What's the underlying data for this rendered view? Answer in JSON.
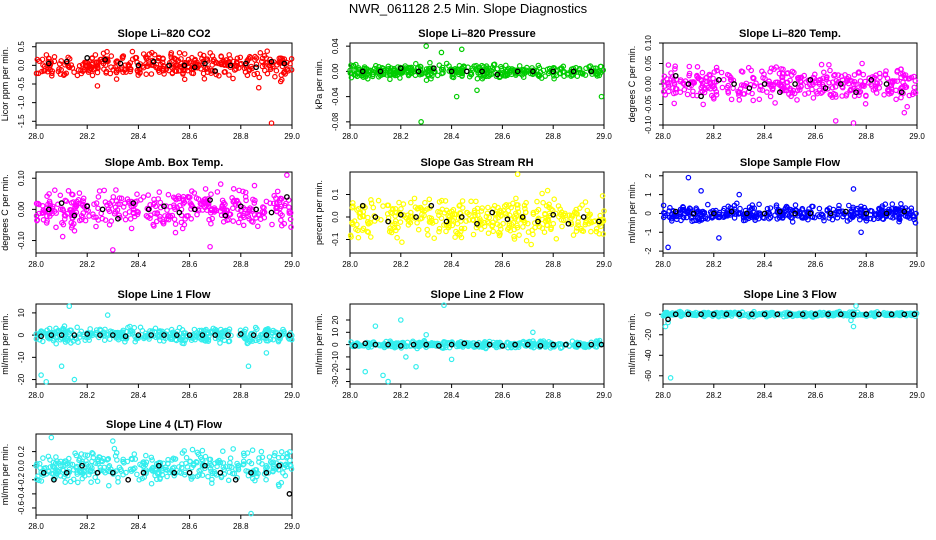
{
  "title": "NWR_061128  2.5 Min. Slope Diagnostics",
  "chart_data": [
    {
      "type": "scatter",
      "title": "Slope Li–820 CO2",
      "ylabel": "Licor ppm per min.",
      "xlim": [
        28.0,
        29.0
      ],
      "ylim": [
        -1.6,
        0.6
      ],
      "yticks": [
        -1.5,
        -1.0,
        -0.5,
        0.0,
        0.5
      ],
      "ytick_labels": [
        "-1.5",
        "-1.0",
        "-0.5",
        "0.0",
        "0.5"
      ],
      "xticks": [
        28.0,
        28.2,
        28.4,
        28.6,
        28.8,
        29.0
      ],
      "xtick_labels": [
        "28.0",
        "28.2",
        "28.4",
        "28.6",
        "28.8",
        "29.0"
      ],
      "color": "#ff0000",
      "noise": [
        -0.45,
        0.45
      ],
      "outliers": [
        [
          28.92,
          -1.55
        ],
        [
          28.87,
          -0.6
        ],
        [
          28.24,
          -0.55
        ]
      ],
      "black": [
        [
          28.05,
          0.05
        ],
        [
          28.12,
          0.1
        ],
        [
          28.2,
          0.2
        ],
        [
          28.27,
          0.15
        ],
        [
          28.33,
          0.05
        ],
        [
          28.4,
          0.0
        ],
        [
          28.46,
          0.1
        ],
        [
          28.52,
          0.0
        ],
        [
          28.58,
          0.0
        ],
        [
          28.62,
          -0.05
        ],
        [
          28.66,
          0.05
        ],
        [
          28.7,
          -0.15
        ],
        [
          28.76,
          0.0
        ],
        [
          28.82,
          0.05
        ],
        [
          28.86,
          -0.05
        ],
        [
          28.92,
          0.1
        ],
        [
          28.97,
          0.05
        ]
      ]
    },
    {
      "type": "scatter",
      "title": "Slope Li–820 Pressure",
      "ylabel": "kPa per min.",
      "xlim": [
        28.0,
        29.0
      ],
      "ylim": [
        -0.085,
        0.045
      ],
      "yticks": [
        -0.08,
        -0.04,
        0.0,
        0.04
      ],
      "ytick_labels": [
        "-0.08",
        "-0.04",
        "0.00",
        "0.04"
      ],
      "xticks": [
        28.0,
        28.2,
        28.4,
        28.6,
        28.8,
        29.0
      ],
      "xtick_labels": [
        "28.0",
        "28.2",
        "28.4",
        "28.6",
        "28.8",
        "29.0"
      ],
      "color": "#00cc00",
      "noise": [
        -0.015,
        0.015
      ],
      "outliers": [
        [
          28.28,
          -0.08
        ],
        [
          28.3,
          0.04
        ],
        [
          28.36,
          0.03
        ],
        [
          28.42,
          -0.04
        ],
        [
          28.44,
          0.035
        ],
        [
          28.99,
          -0.04
        ],
        [
          28.5,
          -0.03
        ]
      ],
      "black": [
        [
          28.05,
          0.0
        ],
        [
          28.12,
          0.0
        ],
        [
          28.2,
          0.005
        ],
        [
          28.27,
          0.0
        ],
        [
          28.33,
          0.005
        ],
        [
          28.4,
          0.0
        ],
        [
          28.46,
          0.0
        ],
        [
          28.52,
          0.0
        ],
        [
          28.58,
          -0.005
        ],
        [
          28.66,
          0.0
        ],
        [
          28.72,
          0.0
        ],
        [
          28.8,
          0.0
        ],
        [
          28.88,
          0.0
        ],
        [
          28.95,
          0.0
        ]
      ]
    },
    {
      "type": "scatter",
      "title": "Slope Li–820 Temp.",
      "ylabel": "degrees C per min.",
      "xlim": [
        28.0,
        29.0
      ],
      "ylim": [
        -0.1,
        0.1
      ],
      "yticks": [
        -0.1,
        -0.05,
        0.0,
        0.05,
        0.1
      ],
      "ytick_labels": [
        "-0.10",
        "-0.05",
        "0.00",
        "0.05",
        "0.10"
      ],
      "xticks": [
        28.0,
        28.2,
        28.4,
        28.6,
        28.8,
        29.0
      ],
      "xtick_labels": [
        "28.0",
        "28.2",
        "28.4",
        "28.6",
        "28.8",
        "29.0"
      ],
      "color": "#ff00ff",
      "noise": [
        -0.06,
        0.06
      ],
      "outliers": [
        [
          28.68,
          -0.09
        ],
        [
          28.75,
          -0.095
        ],
        [
          28.95,
          -0.07
        ]
      ],
      "black": [
        [
          28.05,
          0.02
        ],
        [
          28.1,
          0.0
        ],
        [
          28.15,
          -0.03
        ],
        [
          28.22,
          0.01
        ],
        [
          28.28,
          0.0
        ],
        [
          28.34,
          -0.01
        ],
        [
          28.4,
          0.0
        ],
        [
          28.46,
          -0.02
        ],
        [
          28.52,
          0.0
        ],
        [
          28.58,
          0.01
        ],
        [
          28.64,
          -0.01
        ],
        [
          28.7,
          0.0
        ],
        [
          28.76,
          -0.02
        ],
        [
          28.82,
          0.01
        ],
        [
          28.88,
          0.0
        ],
        [
          28.94,
          -0.02
        ]
      ]
    },
    {
      "type": "scatter",
      "title": "Slope Amb. Box Temp.",
      "ylabel": "degrees C per min.",
      "xlim": [
        28.0,
        29.0
      ],
      "ylim": [
        -0.14,
        0.12
      ],
      "yticks": [
        -0.1,
        0.0,
        0.1
      ],
      "ytick_labels": [
        "-0.10",
        "0.00",
        "0.10"
      ],
      "xticks": [
        28.0,
        28.2,
        28.4,
        28.6,
        28.8,
        29.0
      ],
      "xtick_labels": [
        "28.0",
        "28.2",
        "28.4",
        "28.6",
        "28.8",
        "29.0"
      ],
      "color": "#ff00ff",
      "noise": [
        -0.09,
        0.09
      ],
      "outliers": [
        [
          28.3,
          -0.13
        ],
        [
          28.68,
          -0.12
        ],
        [
          28.98,
          0.11
        ]
      ],
      "black": [
        [
          28.05,
          0.0
        ],
        [
          28.1,
          0.02
        ],
        [
          28.15,
          -0.02
        ],
        [
          28.2,
          0.01
        ],
        [
          28.26,
          0.0
        ],
        [
          28.32,
          -0.03
        ],
        [
          28.38,
          0.02
        ],
        [
          28.44,
          0.0
        ],
        [
          28.5,
          0.01
        ],
        [
          28.56,
          -0.01
        ],
        [
          28.62,
          0.0
        ],
        [
          28.68,
          0.03
        ],
        [
          28.74,
          -0.02
        ],
        [
          28.8,
          0.01
        ],
        [
          28.86,
          0.0
        ],
        [
          28.92,
          -0.01
        ],
        [
          28.98,
          0.04
        ]
      ]
    },
    {
      "type": "scatter",
      "title": "Slope Gas Stream RH",
      "ylabel": "percent per min.",
      "xlim": [
        28.0,
        29.0
      ],
      "ylim": [
        -0.16,
        0.2
      ],
      "yticks": [
        -0.1,
        0.0,
        0.1
      ],
      "ytick_labels": [
        "-0.1",
        "0.0",
        "0.1"
      ],
      "xticks": [
        28.0,
        28.2,
        28.4,
        28.6,
        28.8,
        29.0
      ],
      "xtick_labels": [
        "28.0",
        "28.2",
        "28.4",
        "28.6",
        "28.8",
        "29.0"
      ],
      "color": "#ffff00",
      "noise": [
        -0.13,
        0.13
      ],
      "outliers": [
        [
          28.66,
          0.19
        ]
      ],
      "black": [
        [
          28.05,
          0.05
        ],
        [
          28.1,
          0.0
        ],
        [
          28.15,
          -0.02
        ],
        [
          28.2,
          0.01
        ],
        [
          28.26,
          0.0
        ],
        [
          28.32,
          0.05
        ],
        [
          28.38,
          -0.02
        ],
        [
          28.44,
          0.0
        ],
        [
          28.5,
          -0.03
        ],
        [
          28.56,
          0.02
        ],
        [
          28.62,
          -0.01
        ],
        [
          28.68,
          0.0
        ],
        [
          28.74,
          -0.02
        ],
        [
          28.8,
          0.01
        ],
        [
          28.86,
          -0.03
        ],
        [
          28.92,
          0.0
        ],
        [
          28.98,
          -0.02
        ]
      ]
    },
    {
      "type": "scatter",
      "title": "Slope Sample Flow",
      "ylabel": "ml/min per min.",
      "xlim": [
        28.0,
        29.0
      ],
      "ylim": [
        -2.1,
        2.2
      ],
      "yticks": [
        -2,
        -1,
        0,
        1,
        2
      ],
      "ytick_labels": [
        "-2",
        "-1",
        "0",
        "1",
        "2"
      ],
      "xticks": [
        28.0,
        28.2,
        28.4,
        28.6,
        28.8,
        29.0
      ],
      "xtick_labels": [
        "28.0",
        "28.2",
        "28.4",
        "28.6",
        "28.8",
        "29.0"
      ],
      "color": "#0000ff",
      "noise": [
        -0.6,
        0.6
      ],
      "outliers": [
        [
          28.02,
          -1.8
        ],
        [
          28.1,
          1.9
        ],
        [
          28.15,
          1.2
        ],
        [
          28.22,
          -1.3
        ],
        [
          28.3,
          1.0
        ],
        [
          28.75,
          1.3
        ],
        [
          28.78,
          -1.0
        ]
      ],
      "black": [
        [
          28.05,
          0.1
        ],
        [
          28.12,
          0.0
        ],
        [
          28.2,
          0.0
        ],
        [
          28.27,
          0.1
        ],
        [
          28.33,
          0.0
        ],
        [
          28.4,
          0.0
        ],
        [
          28.46,
          0.1
        ],
        [
          28.52,
          0.0
        ],
        [
          28.58,
          0.0
        ],
        [
          28.66,
          0.0
        ],
        [
          28.72,
          0.1
        ],
        [
          28.8,
          0.0
        ],
        [
          28.88,
          0.0
        ],
        [
          28.95,
          0.1
        ]
      ]
    },
    {
      "type": "scatter",
      "title": "Slope Line 1 Flow",
      "ylabel": "ml/min per min.",
      "xlim": [
        28.0,
        29.0
      ],
      "ylim": [
        -22,
        14
      ],
      "yticks": [
        -20,
        -10,
        0,
        10
      ],
      "ytick_labels": [
        "-20",
        "-10",
        "0",
        "10"
      ],
      "xticks": [
        28.0,
        28.2,
        28.4,
        28.6,
        28.8,
        29.0
      ],
      "xtick_labels": [
        "28.0",
        "28.2",
        "28.4",
        "28.6",
        "28.8",
        "29.0"
      ],
      "color": "#33eeee",
      "noise": [
        -5,
        5
      ],
      "outliers": [
        [
          28.02,
          -18
        ],
        [
          28.04,
          -21
        ],
        [
          28.1,
          -14
        ],
        [
          28.13,
          13
        ],
        [
          28.15,
          -20
        ],
        [
          28.28,
          9
        ],
        [
          28.83,
          -14
        ],
        [
          28.9,
          -8
        ]
      ],
      "black": [
        [
          28.02,
          -0.5
        ],
        [
          28.06,
          0.0
        ],
        [
          28.1,
          0.0
        ],
        [
          28.15,
          0.0
        ],
        [
          28.2,
          0.5
        ],
        [
          28.25,
          0.0
        ],
        [
          28.3,
          0.0
        ],
        [
          28.35,
          -0.5
        ],
        [
          28.4,
          0.0
        ],
        [
          28.45,
          0.0
        ],
        [
          28.5,
          0.0
        ],
        [
          28.55,
          0.0
        ],
        [
          28.6,
          0.0
        ],
        [
          28.65,
          0.0
        ],
        [
          28.7,
          0.0
        ],
        [
          28.75,
          0.0
        ],
        [
          28.8,
          0.5
        ],
        [
          28.85,
          0.0
        ],
        [
          28.9,
          0.0
        ],
        [
          28.95,
          0.0
        ],
        [
          28.99,
          0.0
        ]
      ]
    },
    {
      "type": "scatter",
      "title": "Slope Line 2 Flow",
      "ylabel": "ml/min per min.",
      "xlim": [
        28.0,
        29.0
      ],
      "ylim": [
        -32,
        33
      ],
      "yticks": [
        -30,
        -20,
        -10,
        0,
        10,
        20
      ],
      "ytick_labels": [
        "-30",
        "-20",
        "-10",
        "0",
        "10",
        "20"
      ],
      "xticks": [
        28.0,
        28.2,
        28.4,
        28.6,
        28.8,
        29.0
      ],
      "xtick_labels": [
        "28.0",
        "28.2",
        "28.4",
        "28.6",
        "28.8",
        "29.0"
      ],
      "color": "#33eeee",
      "noise": [
        -4,
        4
      ],
      "outliers": [
        [
          28.06,
          -22
        ],
        [
          28.1,
          15
        ],
        [
          28.13,
          -25
        ],
        [
          28.15,
          -30
        ],
        [
          28.2,
          20
        ],
        [
          28.22,
          -10
        ],
        [
          28.26,
          -18
        ],
        [
          28.3,
          8
        ],
        [
          28.37,
          32
        ],
        [
          28.4,
          -12
        ],
        [
          28.72,
          10
        ]
      ],
      "black": [
        [
          28.02,
          -1
        ],
        [
          28.06,
          1
        ],
        [
          28.1,
          0
        ],
        [
          28.15,
          0
        ],
        [
          28.2,
          -1
        ],
        [
          28.25,
          0
        ],
        [
          28.3,
          0
        ],
        [
          28.35,
          -1
        ],
        [
          28.4,
          0
        ],
        [
          28.45,
          1
        ],
        [
          28.5,
          0
        ],
        [
          28.55,
          0
        ],
        [
          28.6,
          -1
        ],
        [
          28.65,
          0
        ],
        [
          28.7,
          0
        ],
        [
          28.75,
          -1
        ],
        [
          28.8,
          0
        ],
        [
          28.85,
          0
        ],
        [
          28.9,
          0
        ],
        [
          28.95,
          0
        ],
        [
          28.99,
          0
        ]
      ]
    },
    {
      "type": "scatter",
      "title": "Slope Line 3 Flow",
      "ylabel": "ml/min per min.",
      "xlim": [
        28.0,
        29.0
      ],
      "ylim": [
        -68,
        10
      ],
      "yticks": [
        -60,
        -40,
        -20,
        0
      ],
      "ytick_labels": [
        "-60",
        "-40",
        "-20",
        "0"
      ],
      "xticks": [
        28.0,
        28.2,
        28.4,
        28.6,
        28.8,
        29.0
      ],
      "xtick_labels": [
        "28.0",
        "28.2",
        "28.4",
        "28.6",
        "28.8",
        "29.0"
      ],
      "color": "#33eeee",
      "noise": [
        -3,
        3
      ],
      "outliers": [
        [
          28.01,
          -12
        ],
        [
          28.02,
          -8
        ],
        [
          28.03,
          -62
        ],
        [
          28.75,
          -12
        ],
        [
          28.76,
          8
        ],
        [
          28.74,
          -6
        ]
      ],
      "black": [
        [
          28.02,
          -5
        ],
        [
          28.05,
          0
        ],
        [
          28.1,
          0
        ],
        [
          28.15,
          0
        ],
        [
          28.2,
          0
        ],
        [
          28.25,
          0
        ],
        [
          28.3,
          0
        ],
        [
          28.35,
          0
        ],
        [
          28.4,
          0
        ],
        [
          28.45,
          0
        ],
        [
          28.5,
          0
        ],
        [
          28.55,
          0
        ],
        [
          28.6,
          0
        ],
        [
          28.65,
          0
        ],
        [
          28.7,
          0
        ],
        [
          28.75,
          0
        ],
        [
          28.8,
          0
        ],
        [
          28.85,
          0
        ],
        [
          28.9,
          0
        ],
        [
          28.95,
          0
        ],
        [
          28.99,
          0
        ]
      ]
    },
    {
      "type": "scatter",
      "title": "Slope Line 4 (LT) Flow",
      "ylabel": "ml/min per min.",
      "xlim": [
        28.0,
        29.0
      ],
      "ylim": [
        -0.7,
        0.45
      ],
      "yticks": [
        -0.6,
        -0.4,
        -0.2,
        0.0,
        0.2
      ],
      "ytick_labels": [
        "-0.6",
        "-0.4",
        "-0.2",
        "0.0",
        "0.2"
      ],
      "xticks": [
        28.0,
        28.2,
        28.4,
        28.6,
        28.8,
        29.0
      ],
      "xtick_labels": [
        "28.0",
        "28.2",
        "28.4",
        "28.6",
        "28.8",
        "29.0"
      ],
      "color": "#33eeee",
      "noise": [
        -0.35,
        0.3
      ],
      "outliers": [
        [
          28.06,
          0.4
        ],
        [
          28.84,
          -0.68
        ],
        [
          28.3,
          0.35
        ]
      ],
      "black": [
        [
          28.03,
          -0.1
        ],
        [
          28.07,
          -0.2
        ],
        [
          28.12,
          -0.1
        ],
        [
          28.18,
          0.0
        ],
        [
          28.24,
          -0.1
        ],
        [
          28.3,
          -0.1
        ],
        [
          28.36,
          -0.2
        ],
        [
          28.42,
          -0.1
        ],
        [
          28.48,
          0.0
        ],
        [
          28.54,
          -0.1
        ],
        [
          28.6,
          -0.1
        ],
        [
          28.66,
          0.0
        ],
        [
          28.72,
          -0.1
        ],
        [
          28.78,
          -0.2
        ],
        [
          28.84,
          -0.1
        ],
        [
          28.9,
          -0.1
        ],
        [
          28.95,
          0.0
        ],
        [
          28.99,
          -0.4
        ]
      ]
    }
  ]
}
